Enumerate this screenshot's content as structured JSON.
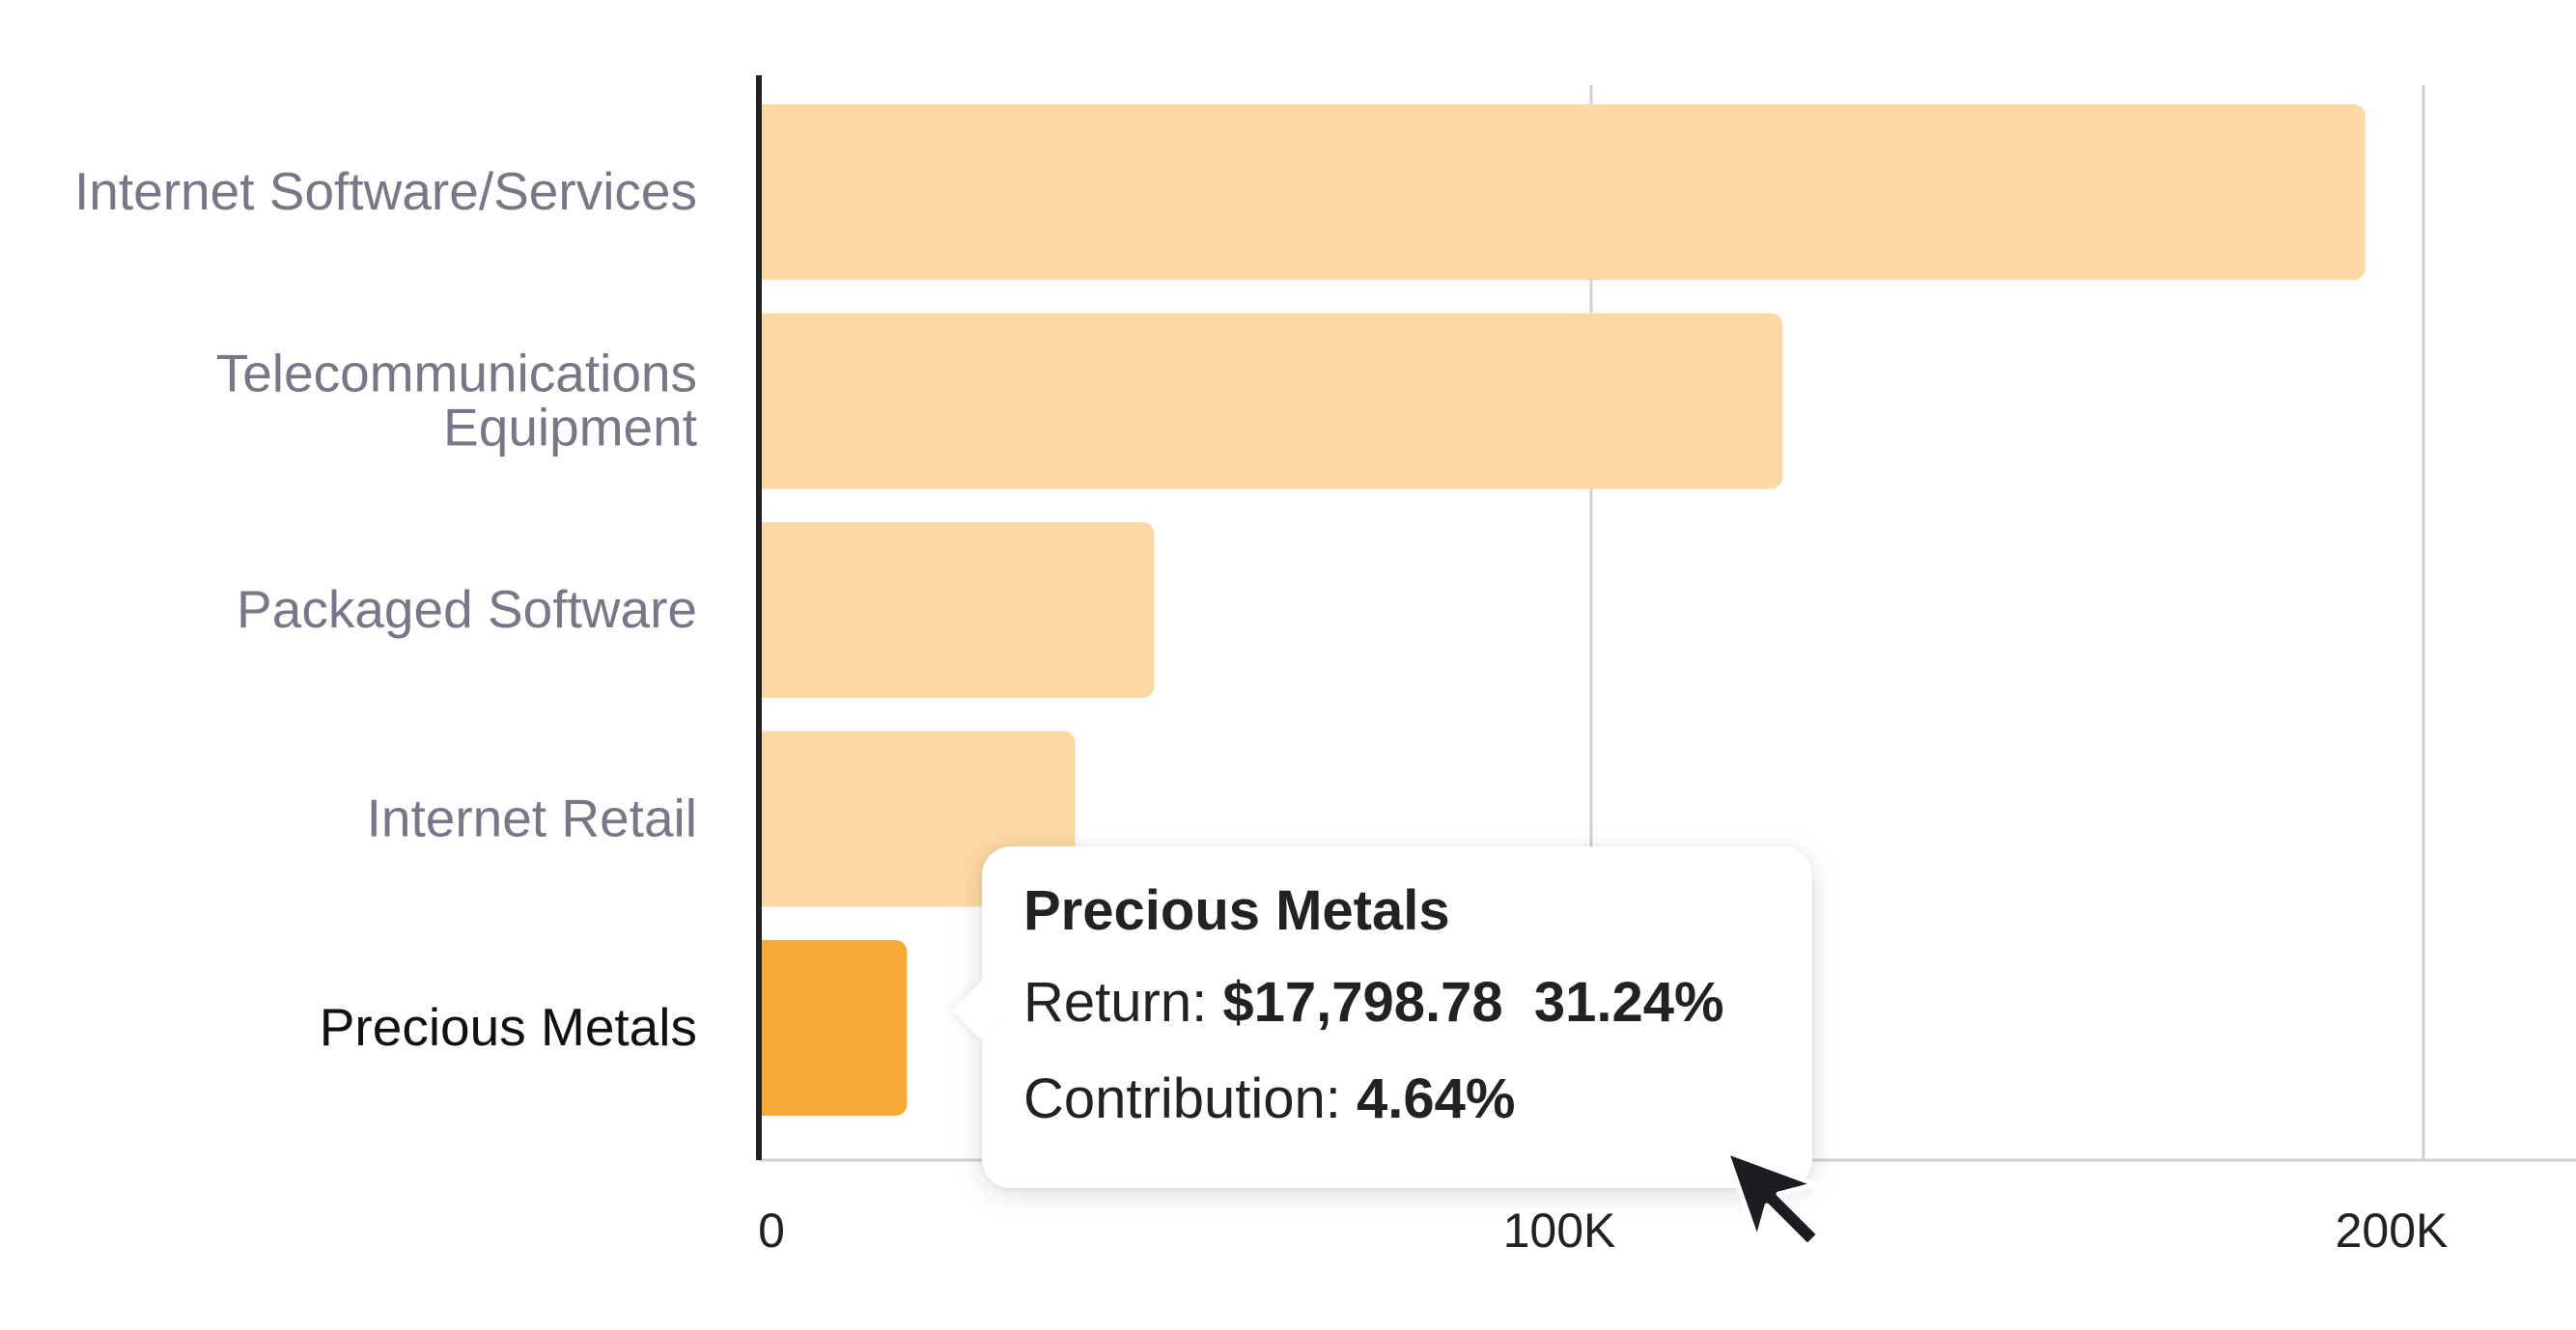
{
  "chart_data": {
    "type": "bar",
    "orientation": "horizontal",
    "categories": [
      "Internet Software/Services",
      "Telecommunications Equipment",
      "Packaged Software",
      "Internet Retail",
      "Precious Metals"
    ],
    "category_label_lines": [
      [
        "Internet Software/Services"
      ],
      [
        "Telecommunications",
        "Equipment"
      ],
      [
        "Packaged Software"
      ],
      [
        "Internet Retail"
      ],
      [
        "Precious Metals"
      ]
    ],
    "values": [
      193000,
      123000,
      47500,
      38000,
      17798.78
    ],
    "highlighted_index": 4,
    "xlim": [
      0,
      215000
    ],
    "xticks": [
      0,
      100000,
      200000
    ],
    "xtick_labels": [
      "0",
      "100K",
      "200K"
    ],
    "grid": "vertical",
    "title": "",
    "xlabel": "",
    "ylabel": "",
    "colors": {
      "bar": "#fcd9a4",
      "bar_highlight": "#f9ab38",
      "axis": "#222222",
      "grid": "#cfcfd6"
    }
  },
  "tooltip": {
    "title": "Precious Metals",
    "return_label": "Return:",
    "return_value": "$17,798.78",
    "return_percent": "31.24%",
    "contribution_label": "Contribution:",
    "contribution_value": "4.64%"
  },
  "cursor": {
    "icon": "arrow-cursor-icon"
  }
}
